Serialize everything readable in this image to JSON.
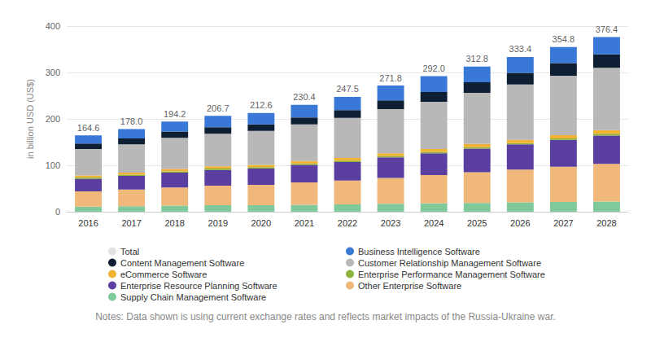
{
  "chart_data": {
    "type": "bar",
    "stacked": true,
    "grid": true,
    "legend": "bottom",
    "y_label": "in billion USD (US$)",
    "note": "Notes: Data shown is using current exchange rates and reflects market impacts of the Russia-Ukraine war.",
    "categories": [
      "2016",
      "2017",
      "2018",
      "2019",
      "2020",
      "2021",
      "2022",
      "2023",
      "2024",
      "2025",
      "2026",
      "2027",
      "2028"
    ],
    "ylim": [
      0,
      400
    ],
    "yticks": [
      0,
      100,
      200,
      300,
      400
    ],
    "series": [
      {
        "name": "Total",
        "type": "scatter",
        "color": "#d9d9d9",
        "data_labels": true,
        "values": [
          164.6,
          178.0,
          194.2,
          206.7,
          212.6,
          230.4,
          247.5,
          271.8,
          292.0,
          312.8,
          333.4,
          354.8,
          376.4
        ],
        "value_labels": [
          "164.6",
          "178.0",
          "194.2",
          "206.7",
          "212.6",
          "230.4",
          "247.5",
          "271.8",
          "292.0",
          "312.8",
          "333.4",
          "354.8",
          "376.4"
        ]
      },
      {
        "name": "Business Intelligence Software",
        "color": "#3a78d8",
        "values": [
          17.6,
          20,
          21.2,
          24.7,
          24.6,
          27.4,
          28.5,
          31.8,
          34,
          33.8,
          34.4,
          34.8,
          37.4
        ]
      },
      {
        "name": "Content Management Software",
        "color": "#0f1f33",
        "values": [
          12,
          13,
          14,
          14,
          14,
          15,
          17,
          19,
          21,
          23,
          25,
          27,
          29
        ]
      },
      {
        "name": "Customer Relationship Management Software",
        "color": "#b8b8b8",
        "values": [
          57,
          61,
          67,
          70,
          73,
          79,
          86,
          95,
          102,
          110,
          119,
          128,
          134
        ]
      },
      {
        "name": "eCommerce Software",
        "color": "#f2b233",
        "values": [
          4,
          4,
          5,
          5,
          5,
          5,
          6,
          6,
          6,
          7,
          7,
          7,
          8
        ]
      },
      {
        "name": "Enterprise Performance Management Software",
        "color": "#8db33a",
        "values": [
          3,
          3,
          3,
          3,
          3,
          3,
          3,
          3,
          3,
          3,
          3,
          3,
          4
        ]
      },
      {
        "name": "Enterprise Resource Planning Software",
        "color": "#5b3fa0",
        "values": [
          27,
          29,
          32,
          34,
          35,
          38,
          40,
          44,
          47,
          51,
          54,
          58,
          61
        ]
      },
      {
        "name": "Other Enterprise Software",
        "color": "#f0b87a",
        "values": [
          33,
          36,
          39,
          42,
          44,
          48,
          51,
          56,
          61,
          66,
          71,
          76,
          81
        ]
      },
      {
        "name": "Supply Chain Management Software",
        "color": "#7fc99a",
        "values": [
          11,
          12,
          13,
          14,
          14,
          15,
          16,
          17,
          18,
          19,
          20,
          21,
          22
        ]
      }
    ]
  }
}
